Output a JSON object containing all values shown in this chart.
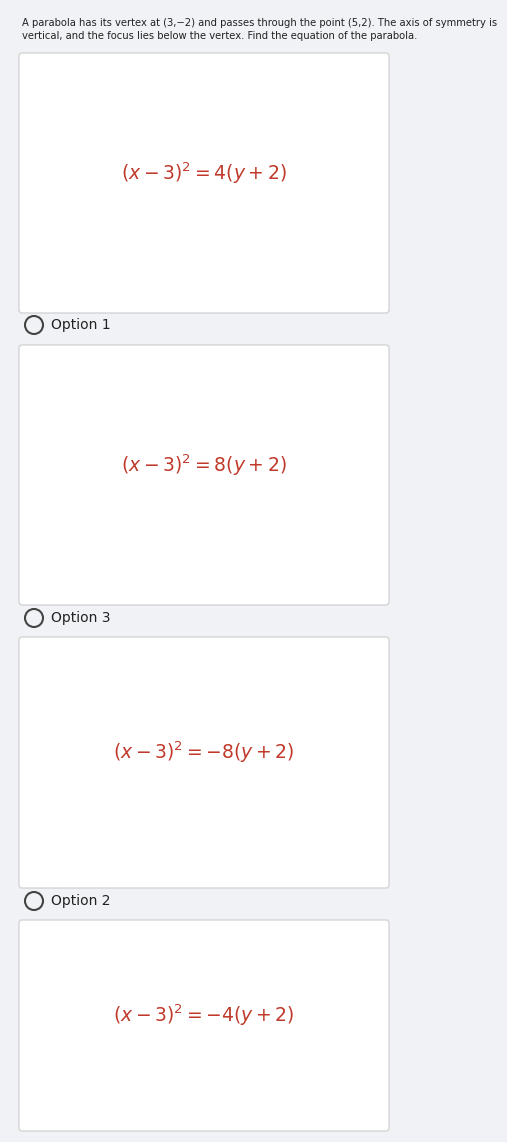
{
  "problem_text": "A parabola has its vertex at (3,−2) and passes through the point (5,2). The axis of symmetry is\nvertical, and the focus lies below the vertex. Find the equation of the parabola.",
  "options": [
    {
      "label": "Option 1",
      "equation": "$(x - 3)^2 = 4(y + 2)$"
    },
    {
      "label": "Option 3",
      "equation": "$(x - 3)^2 = 8(y + 2)$"
    },
    {
      "label": "Option 2",
      "equation": "$(x - 3)^2 = -8(y + 2)$"
    },
    {
      "label": "",
      "equation": "$(x - 3)^2 = -4(y + 2)$"
    }
  ],
  "bg_color": "#f0f2f5",
  "box_facecolor": "#ffffff",
  "box_edgecolor": "#cccccc",
  "problem_fontsize": 7.2,
  "equation_fontsize": 13.5,
  "label_fontsize": 10,
  "text_color": "#222222",
  "equation_color": "#c0392b",
  "radio_color": "#444444"
}
